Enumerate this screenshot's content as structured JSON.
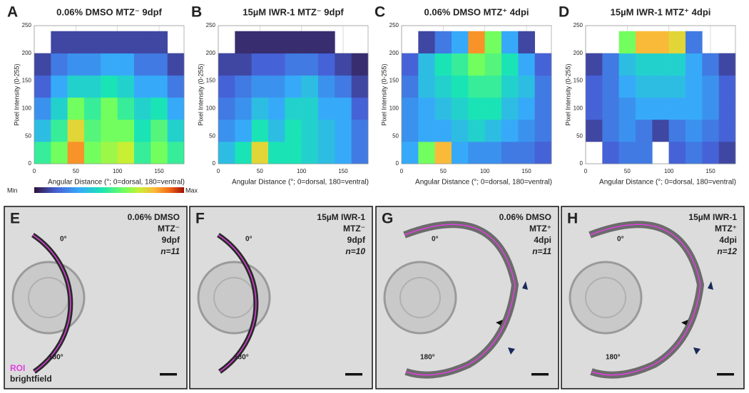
{
  "chart_data": [
    {
      "type": "heatmap",
      "letter": "A",
      "title": "0.06% DMSO MTZ⁻ 9dpf",
      "x_label": "Angular Distance (°; 0=dorsal, 180=ventral)",
      "y_label": "Pixel Intensity (0-255)",
      "xlim": [
        0,
        180
      ],
      "ylim": [
        0,
        250
      ],
      "xticks": [
        0,
        50,
        100,
        150
      ],
      "yticks": [
        0,
        50,
        100,
        150,
        200,
        250
      ],
      "grid": true,
      "x_bins": [
        0,
        20,
        40,
        60,
        80,
        100,
        120,
        140,
        160,
        180
      ],
      "y_bins": [
        0,
        40,
        80,
        120,
        160,
        200,
        240
      ],
      "z": [
        [
          0.5,
          0.35,
          0.25,
          0.15,
          0.1,
          null
        ],
        [
          0.6,
          0.5,
          0.4,
          0.3,
          0.2,
          0.1
        ],
        [
          0.85,
          0.75,
          0.6,
          0.4,
          0.25,
          0.1
        ],
        [
          0.6,
          0.55,
          0.5,
          0.4,
          0.25,
          0.1
        ],
        [
          0.65,
          0.6,
          0.6,
          0.45,
          0.3,
          0.1
        ],
        [
          0.7,
          0.6,
          0.5,
          0.4,
          0.3,
          0.1
        ],
        [
          0.5,
          0.45,
          0.4,
          0.3,
          0.2,
          0.1
        ],
        [
          0.6,
          0.55,
          0.45,
          0.3,
          0.2,
          0.1
        ],
        [
          0.5,
          0.4,
          0.3,
          0.2,
          0.1,
          null
        ]
      ],
      "colorbar": [
        "Min",
        "Max"
      ]
    },
    {
      "type": "heatmap",
      "letter": "B",
      "title": "15µM IWR-1 MTZ⁻ 9dpf",
      "x_label": "Angular Distance (°; 0=dorsal, 180=ventral)",
      "y_label": "Pixel Intensity (0-255)",
      "xlim": [
        0,
        180
      ],
      "ylim": [
        0,
        250
      ],
      "xticks": [
        0,
        50,
        100,
        150
      ],
      "yticks": [
        0,
        50,
        100,
        150,
        200,
        250
      ],
      "grid": true,
      "x_bins": [
        0,
        20,
        40,
        60,
        80,
        100,
        120,
        140,
        160,
        180
      ],
      "y_bins": [
        0,
        40,
        80,
        120,
        160,
        200,
        240
      ],
      "z": [
        [
          0.35,
          0.25,
          0.2,
          0.15,
          0.1,
          null
        ],
        [
          0.45,
          0.3,
          0.25,
          0.2,
          0.1,
          0.05
        ],
        [
          0.75,
          0.45,
          0.35,
          0.25,
          0.15,
          0.05
        ],
        [
          0.45,
          0.35,
          0.3,
          0.25,
          0.15,
          0.05
        ],
        [
          0.45,
          0.45,
          0.4,
          0.3,
          0.2,
          0.05
        ],
        [
          0.4,
          0.4,
          0.4,
          0.35,
          0.2,
          0.05
        ],
        [
          0.35,
          0.35,
          0.3,
          0.25,
          0.15,
          0.05
        ],
        [
          0.3,
          0.3,
          0.3,
          0.2,
          0.1,
          null
        ],
        [
          0.2,
          0.2,
          0.15,
          0.1,
          0.05,
          null
        ]
      ]
    },
    {
      "type": "heatmap",
      "letter": "C",
      "title": "0.06% DMSO MTZ⁺ 4dpi",
      "x_label": "Angular Distance (°; 0=dorsal, 180=ventral)",
      "y_label": "Pixel Intensity (0-255)",
      "xlim": [
        0,
        180
      ],
      "ylim": [
        0,
        250
      ],
      "xticks": [
        0,
        50,
        100,
        150
      ],
      "yticks": [
        0,
        50,
        100,
        150,
        200,
        250
      ],
      "grid": true,
      "x_bins": [
        0,
        20,
        40,
        60,
        80,
        100,
        120,
        140,
        160,
        180
      ],
      "y_bins": [
        0,
        40,
        80,
        120,
        160,
        200,
        240
      ],
      "z": [
        [
          0.3,
          0.25,
          0.25,
          0.2,
          0.15,
          null
        ],
        [
          0.6,
          0.3,
          0.3,
          0.35,
          0.35,
          0.1
        ],
        [
          0.8,
          0.3,
          0.35,
          0.4,
          0.45,
          0.2
        ],
        [
          0.3,
          0.35,
          0.4,
          0.45,
          0.5,
          0.3
        ],
        [
          0.25,
          0.4,
          0.45,
          0.5,
          0.6,
          0.85
        ],
        [
          0.25,
          0.35,
          0.45,
          0.5,
          0.55,
          0.6
        ],
        [
          0.2,
          0.3,
          0.35,
          0.4,
          0.45,
          0.3
        ],
        [
          0.2,
          0.25,
          0.3,
          0.35,
          0.3,
          0.1
        ],
        [
          0.15,
          0.2,
          0.2,
          0.2,
          0.15,
          null
        ]
      ]
    },
    {
      "type": "heatmap",
      "letter": "D",
      "title": "15µM IWR-1 MTZ⁺ 4dpi",
      "x_label": "Angular Distance (°; 0=dorsal, 180=ventral)",
      "y_label": "Pixel Intensity (0-255)",
      "xlim": [
        0,
        180
      ],
      "ylim": [
        0,
        250
      ],
      "xticks": [
        0,
        50,
        100,
        150
      ],
      "yticks": [
        0,
        50,
        100,
        150,
        200,
        250
      ],
      "grid": true,
      "x_bins": [
        0,
        20,
        40,
        60,
        80,
        100,
        120,
        140,
        160,
        180
      ],
      "y_bins": [
        0,
        40,
        80,
        120,
        160,
        200,
        240
      ],
      "z": [
        [
          null,
          0.1,
          0.15,
          0.15,
          0.1,
          null
        ],
        [
          0.15,
          0.2,
          0.2,
          0.2,
          0.2,
          null
        ],
        [
          0.2,
          0.25,
          0.25,
          0.3,
          0.35,
          0.6
        ],
        [
          0.2,
          0.2,
          0.3,
          0.35,
          0.4,
          0.8
        ],
        [
          null,
          0.1,
          0.3,
          0.35,
          0.4,
          0.8
        ],
        [
          0.15,
          0.2,
          0.3,
          0.35,
          0.4,
          0.75
        ],
        [
          0.2,
          0.25,
          0.3,
          0.3,
          0.3,
          0.2
        ],
        [
          0.15,
          0.2,
          0.25,
          0.25,
          0.2,
          null
        ],
        [
          0.1,
          0.15,
          0.15,
          0.15,
          0.1,
          null
        ]
      ]
    }
  ],
  "images": [
    {
      "letter": "E",
      "lines": [
        "0.06% DMSO",
        "MTZ⁻",
        "9dpf",
        "n=11"
      ],
      "dorsal": "0°",
      "ventral": "180°",
      "legend": [
        "ROI",
        "brightfield"
      ]
    },
    {
      "letter": "F",
      "lines": [
        "15µM IWR-1",
        "MTZ⁻",
        "9dpf",
        "n=10"
      ],
      "dorsal": "0°",
      "ventral": "180°"
    },
    {
      "letter": "G",
      "lines": [
        "0.06% DMSO",
        "MTZ⁺",
        "4dpi",
        "n=11"
      ],
      "dorsal": "0°",
      "ventral": "180°"
    },
    {
      "letter": "H",
      "lines": [
        "15µM IWR-1",
        "MTZ⁺",
        "4dpi",
        "n=12"
      ],
      "dorsal": "0°",
      "ventral": "180°"
    }
  ]
}
